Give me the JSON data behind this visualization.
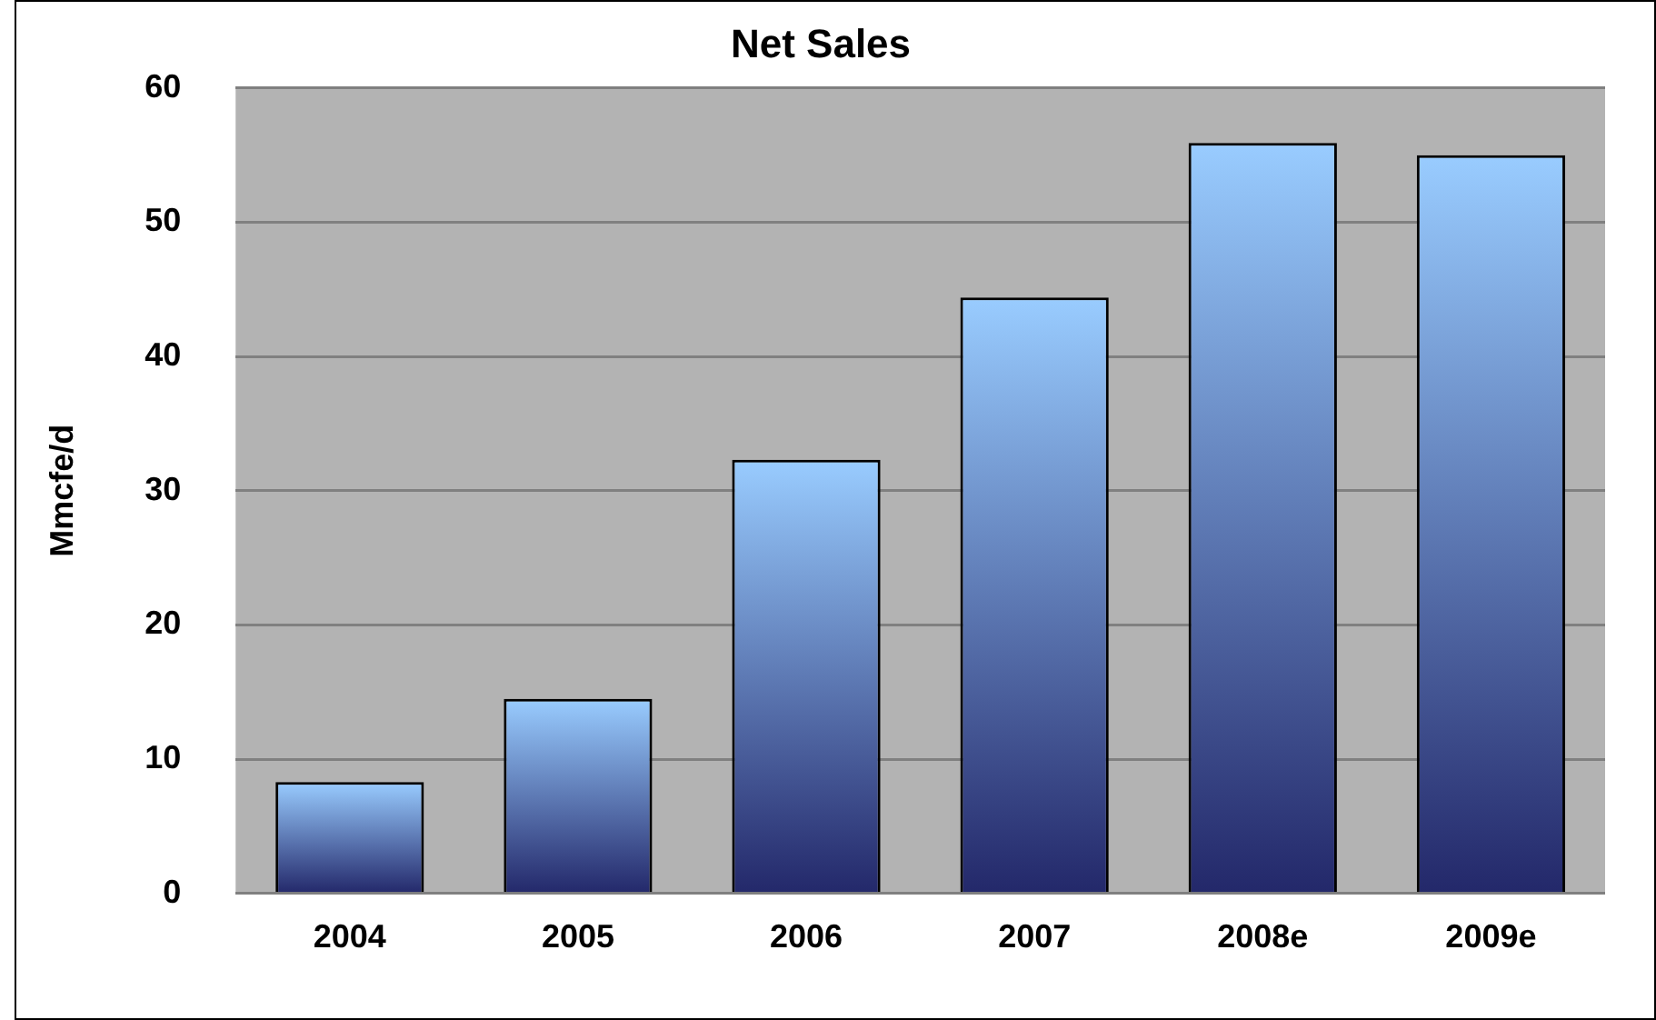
{
  "chart_data": {
    "type": "bar",
    "title": "Net Sales",
    "ylabel": "Mmcfe/d",
    "categories": [
      "2004",
      "2005",
      "2006",
      "2007",
      "2008e",
      "2009e"
    ],
    "values": [
      8.3,
      14.5,
      32.3,
      44.4,
      55.9,
      55.0
    ],
    "color": "#99ccff",
    "ylim": [
      0,
      60
    ],
    "yticks": [
      0,
      10,
      20,
      30,
      40,
      50,
      60
    ],
    "grid": "y"
  }
}
